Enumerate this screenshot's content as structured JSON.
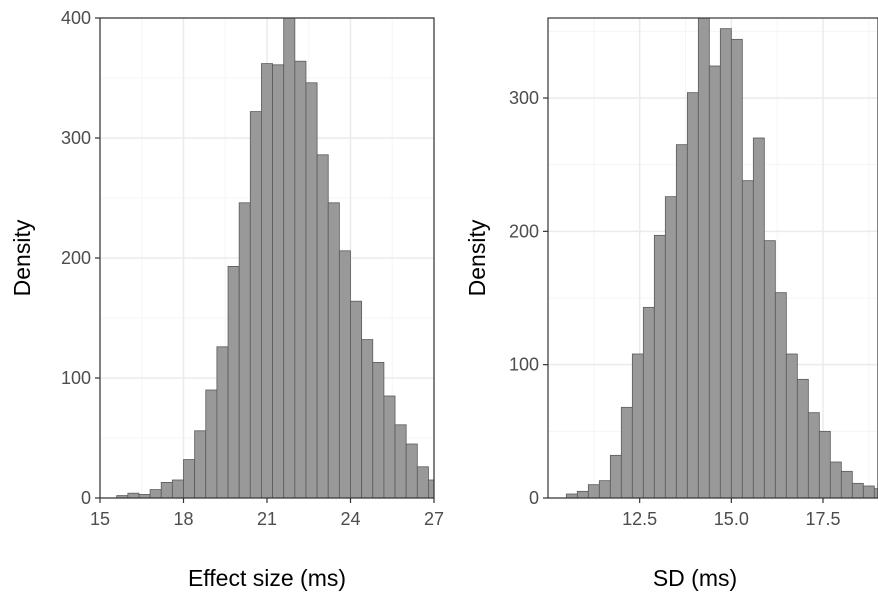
{
  "style": {
    "bar_fill": "#999999",
    "bar_stroke": "#5a5a5a",
    "grid_major": "#ebebeb",
    "grid_minor": "#f5f5f5",
    "panel_border": "#333333"
  },
  "chart_data": [
    {
      "type": "bar",
      "xlabel": "Effect size (ms)",
      "ylabel": "Density",
      "xlim": [
        15,
        27
      ],
      "ylim": [
        0,
        400
      ],
      "x_ticks": [
        15,
        18,
        21,
        24,
        27
      ],
      "y_ticks": [
        0,
        100,
        200,
        300,
        400
      ],
      "grid": true,
      "bin_start": 15.6,
      "bin_width": 0.4,
      "values": [
        2,
        4,
        3,
        7,
        13,
        15,
        32,
        56,
        90,
        126,
        193,
        246,
        322,
        362,
        361,
        400,
        364,
        346,
        286,
        246,
        206,
        164,
        132,
        113,
        85,
        61,
        45,
        26,
        15,
        9,
        5,
        2
      ]
    },
    {
      "type": "bar",
      "xlabel": "SD (ms)",
      "ylabel": "Density",
      "xlim": [
        10.0,
        19.0
      ],
      "ylim": [
        0,
        360
      ],
      "x_ticks": [
        12.5,
        15.0,
        17.5
      ],
      "x_tick_labels": [
        "12.5",
        "15.0",
        "17.5"
      ],
      "y_ticks": [
        0,
        100,
        200,
        300
      ],
      "grid": true,
      "bin_start": 10.5,
      "bin_width": 0.3,
      "values": [
        3,
        5,
        10,
        13,
        32,
        68,
        108,
        143,
        197,
        226,
        265,
        304,
        360,
        324,
        352,
        344,
        238,
        270,
        193,
        154,
        108,
        89,
        64,
        50,
        27,
        20,
        11,
        9,
        7
      ]
    }
  ]
}
